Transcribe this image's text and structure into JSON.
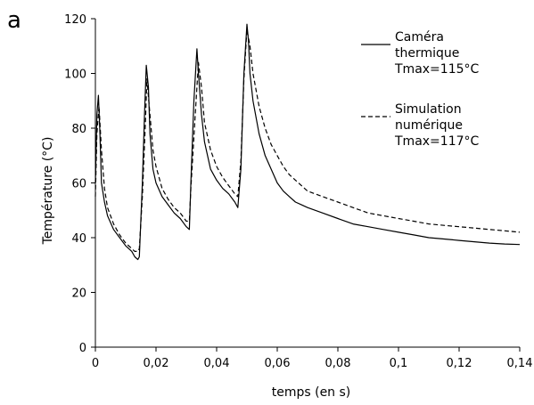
{
  "chart_data": {
    "type": "line",
    "panel_label": "a",
    "title": "",
    "xlabel": "temps (en s)",
    "ylabel": "Température (°C)",
    "xlim": [
      0,
      0.14
    ],
    "ylim": [
      0,
      120
    ],
    "x_ticks": [
      0,
      0.02,
      0.04,
      0.06,
      0.08,
      0.1,
      0.12,
      0.14
    ],
    "x_tick_labels": [
      "0",
      "0,02",
      "0,04",
      "0,06",
      "0,08",
      "0,1",
      "0,12",
      "0,14"
    ],
    "y_ticks": [
      0,
      20,
      40,
      60,
      80,
      100,
      120
    ],
    "y_tick_labels": [
      "0",
      "20",
      "40",
      "60",
      "80",
      "100",
      "120"
    ],
    "grid": false,
    "legend_position": "top-right",
    "series": [
      {
        "name_lines": [
          "Caméra",
          "thermique",
          "Tmax=115°C"
        ],
        "style": "solid",
        "color": "#000000",
        "points": [
          [
            0,
            60
          ],
          [
            0.0005,
            85
          ],
          [
            0.001,
            92
          ],
          [
            0.0015,
            78
          ],
          [
            0.002,
            60
          ],
          [
            0.003,
            53
          ],
          [
            0.004,
            48
          ],
          [
            0.006,
            43
          ],
          [
            0.008,
            40
          ],
          [
            0.01,
            37
          ],
          [
            0.012,
            35
          ],
          [
            0.013,
            33
          ],
          [
            0.014,
            32
          ],
          [
            0.0145,
            33
          ],
          [
            0.0155,
            60
          ],
          [
            0.0162,
            85
          ],
          [
            0.0168,
            103
          ],
          [
            0.0175,
            95
          ],
          [
            0.018,
            78
          ],
          [
            0.019,
            65
          ],
          [
            0.02,
            60
          ],
          [
            0.022,
            55
          ],
          [
            0.024,
            52
          ],
          [
            0.026,
            49
          ],
          [
            0.028,
            47
          ],
          [
            0.03,
            44
          ],
          [
            0.031,
            43
          ],
          [
            0.0315,
            60
          ],
          [
            0.0325,
            90
          ],
          [
            0.0335,
            109
          ],
          [
            0.034,
            100
          ],
          [
            0.035,
            85
          ],
          [
            0.036,
            75
          ],
          [
            0.038,
            65
          ],
          [
            0.04,
            61
          ],
          [
            0.042,
            58
          ],
          [
            0.044,
            56
          ],
          [
            0.046,
            53
          ],
          [
            0.047,
            51
          ],
          [
            0.048,
            65
          ],
          [
            0.049,
            100
          ],
          [
            0.05,
            118
          ],
          [
            0.0505,
            112
          ],
          [
            0.051,
            100
          ],
          [
            0.052,
            90
          ],
          [
            0.054,
            78
          ],
          [
            0.056,
            70
          ],
          [
            0.058,
            65
          ],
          [
            0.06,
            60
          ],
          [
            0.062,
            57
          ],
          [
            0.064,
            55
          ],
          [
            0.066,
            53
          ],
          [
            0.068,
            52
          ],
          [
            0.07,
            51
          ],
          [
            0.075,
            49
          ],
          [
            0.08,
            47
          ],
          [
            0.085,
            45
          ],
          [
            0.09,
            44
          ],
          [
            0.095,
            43
          ],
          [
            0.1,
            42
          ],
          [
            0.105,
            41
          ],
          [
            0.11,
            40
          ],
          [
            0.115,
            39.5
          ],
          [
            0.12,
            39
          ],
          [
            0.125,
            38.5
          ],
          [
            0.13,
            38
          ],
          [
            0.135,
            37.7
          ],
          [
            0.14,
            37.5
          ]
        ]
      },
      {
        "name_lines": [
          "Simulation",
          "numérique",
          "Tmax=117°C"
        ],
        "style": "dashed",
        "color": "#000000",
        "points": [
          [
            0,
            55
          ],
          [
            0.0005,
            78
          ],
          [
            0.0012,
            88
          ],
          [
            0.002,
            72
          ],
          [
            0.003,
            58
          ],
          [
            0.004,
            51
          ],
          [
            0.006,
            45
          ],
          [
            0.008,
            41
          ],
          [
            0.01,
            38
          ],
          [
            0.012,
            36
          ],
          [
            0.013,
            35
          ],
          [
            0.014,
            35
          ],
          [
            0.0145,
            36
          ],
          [
            0.0155,
            55
          ],
          [
            0.0165,
            82
          ],
          [
            0.017,
            98
          ],
          [
            0.018,
            85
          ],
          [
            0.019,
            72
          ],
          [
            0.02,
            66
          ],
          [
            0.022,
            58
          ],
          [
            0.024,
            54
          ],
          [
            0.026,
            51
          ],
          [
            0.028,
            49
          ],
          [
            0.03,
            46
          ],
          [
            0.031,
            46
          ],
          [
            0.0315,
            58
          ],
          [
            0.033,
            86
          ],
          [
            0.034,
            104
          ],
          [
            0.035,
            95
          ],
          [
            0.036,
            82
          ],
          [
            0.038,
            72
          ],
          [
            0.04,
            66
          ],
          [
            0.042,
            62
          ],
          [
            0.044,
            59
          ],
          [
            0.046,
            56
          ],
          [
            0.047,
            55
          ],
          [
            0.048,
            68
          ],
          [
            0.049,
            98
          ],
          [
            0.05,
            116
          ],
          [
            0.051,
            110
          ],
          [
            0.052,
            100
          ],
          [
            0.054,
            88
          ],
          [
            0.056,
            80
          ],
          [
            0.058,
            74
          ],
          [
            0.06,
            70
          ],
          [
            0.062,
            66
          ],
          [
            0.064,
            63
          ],
          [
            0.066,
            61
          ],
          [
            0.068,
            59
          ],
          [
            0.07,
            57
          ],
          [
            0.075,
            55
          ],
          [
            0.08,
            53
          ],
          [
            0.085,
            51
          ],
          [
            0.09,
            49
          ],
          [
            0.095,
            48
          ],
          [
            0.1,
            47
          ],
          [
            0.105,
            46
          ],
          [
            0.11,
            45
          ],
          [
            0.115,
            44.5
          ],
          [
            0.12,
            44
          ],
          [
            0.125,
            43.5
          ],
          [
            0.13,
            43
          ],
          [
            0.135,
            42.5
          ],
          [
            0.14,
            42
          ]
        ]
      }
    ]
  }
}
